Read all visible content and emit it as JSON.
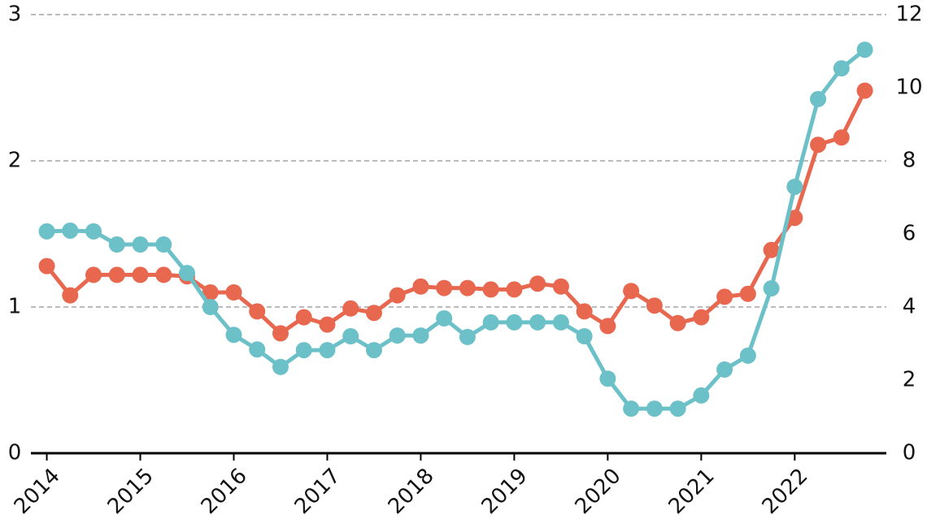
{
  "chart_data": {
    "type": "line",
    "x": [
      2014,
      2014.25,
      2014.5,
      2014.75,
      2015,
      2015.25,
      2015.5,
      2015.75,
      2016,
      2016.25,
      2016.5,
      2016.75,
      2017,
      2017.25,
      2017.5,
      2017.75,
      2018,
      2018.25,
      2018.5,
      2018.75,
      2019,
      2019.25,
      2019.5,
      2019.75,
      2020,
      2020.25,
      2020.5,
      2020.75,
      2021,
      2021.25,
      2021.5,
      2021.75,
      2022,
      2022.25,
      2022.5,
      2022.75
    ],
    "series": [
      {
        "color": "#e8674f",
        "values": [
          1.28,
          1.08,
          1.22,
          1.22,
          1.22,
          1.22,
          1.21,
          1.1,
          1.1,
          0.97,
          0.82,
          0.93,
          0.88,
          0.99,
          0.96,
          1.08,
          1.14,
          1.13,
          1.13,
          1.12,
          1.12,
          1.16,
          1.14,
          0.97,
          0.87,
          1.11,
          1.01,
          0.89,
          0.93,
          1.07,
          1.09,
          1.39,
          1.61,
          2.11,
          2.16,
          2.48
        ]
      },
      {
        "color": "#6cc1c9",
        "axis": "y2",
        "values": [
          6.07,
          6.09,
          6.07,
          5.71,
          5.71,
          5.71,
          4.93,
          4.0,
          3.24,
          2.84,
          2.36,
          2.82,
          2.82,
          3.2,
          2.82,
          3.22,
          3.22,
          3.69,
          3.18,
          3.58,
          3.58,
          3.58,
          3.58,
          3.2,
          2.04,
          1.22,
          1.22,
          1.22,
          1.58,
          2.29,
          2.67,
          4.51,
          7.29,
          9.69,
          10.53,
          11.04
        ]
      }
    ],
    "xlim": [
      2013.83,
      2022.98
    ],
    "xticks": [
      2014,
      2015,
      2016,
      2017,
      2018,
      2019,
      2020,
      2021,
      2022
    ],
    "ylim": [
      0,
      3
    ],
    "yticks": [
      0,
      1,
      2,
      3
    ],
    "y2lim": [
      0,
      12
    ],
    "y2ticks": [
      0,
      2,
      4,
      6,
      8,
      10,
      12
    ],
    "grid": true
  }
}
